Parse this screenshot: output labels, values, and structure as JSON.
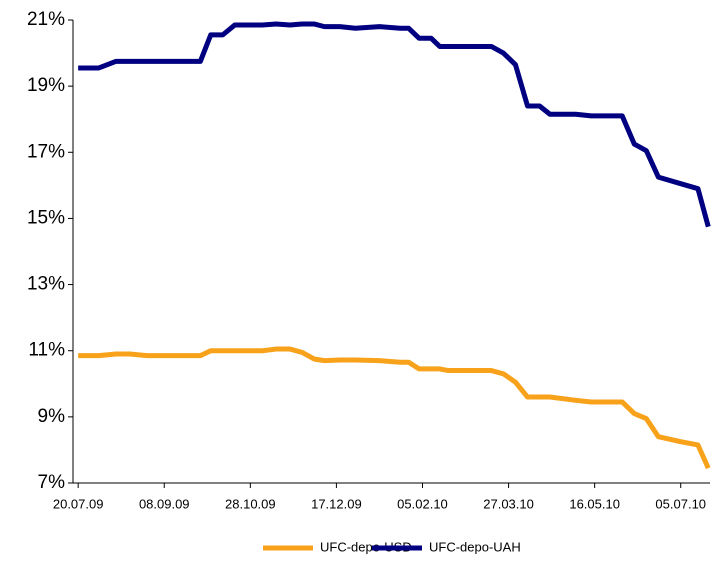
{
  "chart_data": {
    "type": "line",
    "x": [
      "2009-07-20",
      "2009-08-01",
      "2009-08-11",
      "2009-08-19",
      "2009-08-29",
      "2009-09-29",
      "2009-10-05",
      "2009-10-12",
      "2009-10-19",
      "2009-11-04",
      "2009-11-12",
      "2009-11-20",
      "2009-11-27",
      "2009-12-04",
      "2009-12-10",
      "2009-12-19",
      "2009-12-28",
      "2010-01-11",
      "2010-01-23",
      "2010-01-28",
      "2010-02-03",
      "2010-02-10",
      "2010-02-15",
      "2010-02-20",
      "2010-03-17",
      "2010-03-24",
      "2010-03-31",
      "2010-04-07",
      "2010-04-14",
      "2010-04-20",
      "2010-05-05",
      "2010-05-14",
      "2010-06-01",
      "2010-06-08",
      "2010-06-15",
      "2010-06-22",
      "2010-07-05",
      "2010-07-15",
      "2010-07-21"
    ],
    "series": [
      {
        "name": "UFC-depo-USD",
        "color": "#f7a21a",
        "values": [
          10.85,
          10.85,
          10.9,
          10.9,
          10.85,
          10.85,
          11.0,
          11.0,
          11.0,
          11.0,
          11.05,
          11.05,
          10.95,
          10.75,
          10.7,
          10.72,
          10.72,
          10.7,
          10.65,
          10.65,
          10.45,
          10.45,
          10.45,
          10.4,
          10.4,
          10.3,
          10.05,
          9.6,
          9.6,
          9.6,
          9.5,
          9.45,
          9.45,
          9.1,
          8.95,
          8.4,
          8.25,
          8.15,
          7.45
        ]
      },
      {
        "name": "UFC-depo-UAH",
        "color": "#000080",
        "values": [
          19.55,
          19.55,
          19.75,
          19.75,
          19.75,
          19.75,
          20.55,
          20.55,
          20.85,
          20.85,
          20.88,
          20.85,
          20.88,
          20.88,
          20.8,
          20.8,
          20.75,
          20.8,
          20.75,
          20.75,
          20.45,
          20.45,
          20.2,
          20.2,
          20.2,
          20.0,
          19.65,
          18.4,
          18.4,
          18.15,
          18.15,
          18.1,
          18.1,
          17.25,
          17.05,
          16.25,
          16.05,
          15.9,
          14.75
        ]
      }
    ],
    "xlim": [
      "2009-07-17",
      "2010-07-22"
    ],
    "xticks": [
      {
        "value": "2009-07-20",
        "label": "20.07.09"
      },
      {
        "value": "2009-09-08",
        "label": "08.09.09"
      },
      {
        "value": "2009-10-28",
        "label": "28.10.09"
      },
      {
        "value": "2009-12-17",
        "label": "17.12.09"
      },
      {
        "value": "2010-02-05",
        "label": "05.02.10"
      },
      {
        "value": "2010-03-27",
        "label": "27.03.10"
      },
      {
        "value": "2010-05-16",
        "label": "16.05.10"
      },
      {
        "value": "2010-07-05",
        "label": "05.07.10"
      }
    ],
    "ylim": [
      7,
      21
    ],
    "yticks": [
      {
        "value": 7,
        "label": "7%"
      },
      {
        "value": 9,
        "label": "9%"
      },
      {
        "value": 11,
        "label": "11%"
      },
      {
        "value": 13,
        "label": "13%"
      },
      {
        "value": 15,
        "label": "15%"
      },
      {
        "value": 17,
        "label": "17%"
      },
      {
        "value": 19,
        "label": "19%"
      },
      {
        "value": 21,
        "label": "21%"
      }
    ],
    "grid": false,
    "legend": "bottom"
  }
}
